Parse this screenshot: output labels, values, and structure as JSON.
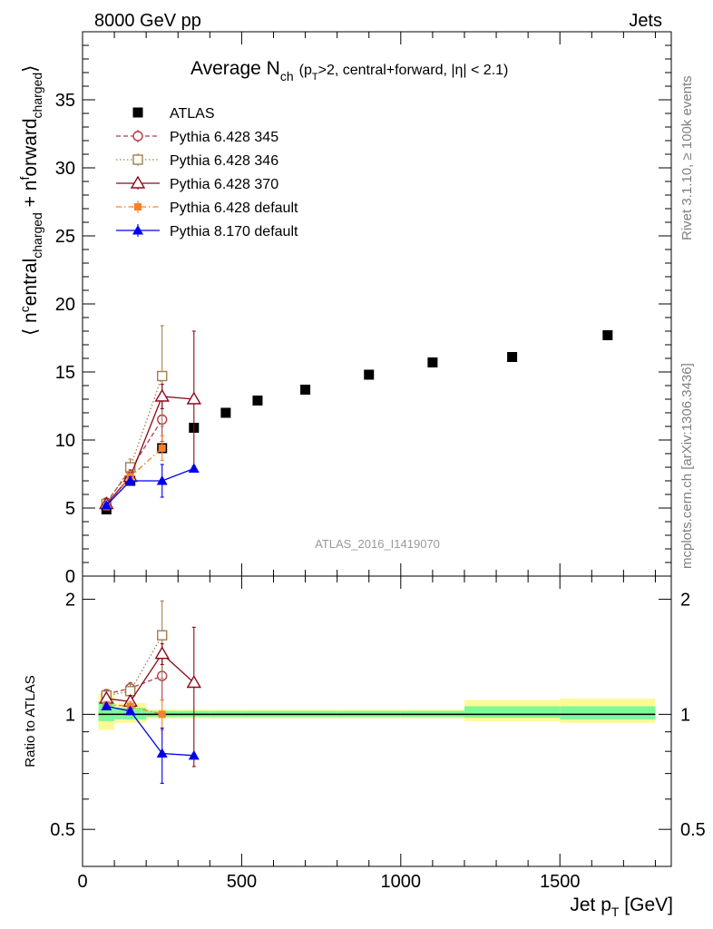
{
  "header": {
    "energy_label": "8000 GeV pp",
    "category_label": "Jets"
  },
  "title": {
    "main": "Average N",
    "main_sub": "ch",
    "detail_pre": "(p",
    "detail_sub": "T",
    "detail_post": ">2, central+forward, |η| < 2.1)"
  },
  "side_labels": {
    "rivet": "Rivet 3.1.10, ≥ 100k events",
    "mcplots": "mcplots.cern.ch [arXiv:1306.3436]"
  },
  "watermark": "ATLAS_2016_I1419070",
  "colors": {
    "atlas": "#000000",
    "py345": "#b03a48",
    "py346": "#a0804a",
    "py370": "#8b0a1e",
    "py6def": "#f5822a",
    "py8def": "#0000ee",
    "band_inner": "#7dfa96",
    "band_outer": "#fbfb96"
  },
  "chart_data": [
    {
      "type": "scatter",
      "panel": "main",
      "title": "Average N_ch (p_T>2, central+forward, |η| < 2.1)",
      "ylabel": "⟨ n^central_charged + n^forward_charged ⟩",
      "ylim": [
        0,
        40
      ],
      "xlim": [
        0,
        1850
      ],
      "yticks": [
        0,
        5,
        10,
        15,
        20,
        25,
        30,
        35
      ],
      "legend_position": "top-left",
      "series": [
        {
          "key": "atlas",
          "name": "ATLAS",
          "marker": "square-filled",
          "line": "none",
          "x": [
            75,
            150,
            250,
            350,
            450,
            550,
            700,
            900,
            1100,
            1350,
            1650
          ],
          "y": [
            4.9,
            7.0,
            9.4,
            10.9,
            12.0,
            12.9,
            13.7,
            14.8,
            15.7,
            16.1,
            17.7
          ]
        },
        {
          "key": "py345",
          "name": "Pythia 6.428 345",
          "marker": "circle-open",
          "line": "dashed",
          "x": [
            75,
            150,
            250
          ],
          "y": [
            5.4,
            7.8,
            11.5
          ],
          "yerr": [
            0.3,
            0.4,
            1.6
          ]
        },
        {
          "key": "py346",
          "name": "Pythia 6.428 346",
          "marker": "square-open",
          "line": "dotted",
          "x": [
            75,
            150,
            250
          ],
          "y": [
            5.3,
            8.0,
            14.7
          ],
          "yerr": [
            0.3,
            0.6,
            3.7
          ]
        },
        {
          "key": "py370",
          "name": "Pythia 6.428 370",
          "marker": "triangle-open",
          "line": "solid",
          "x": [
            75,
            150,
            250,
            350
          ],
          "y": [
            5.3,
            7.3,
            13.2,
            13.0
          ],
          "yerr": [
            0.3,
            0.5,
            0.9,
            5.0
          ]
        },
        {
          "key": "py6def",
          "name": "Pythia 6.428 default",
          "marker": "square-small-filled",
          "line": "dashdot",
          "x": [
            75,
            150,
            250
          ],
          "y": [
            5.1,
            7.3,
            9.4
          ],
          "yerr": [
            0.2,
            0.4,
            0.9
          ]
        },
        {
          "key": "py8def",
          "name": "Pythia 8.170 default",
          "marker": "triangle-filled",
          "line": "solid",
          "x": [
            75,
            150,
            250,
            350
          ],
          "y": [
            5.2,
            7.0,
            7.0,
            7.9
          ],
          "yerr": [
            0.2,
            0.3,
            1.2,
            0.2
          ]
        }
      ]
    },
    {
      "type": "scatter",
      "panel": "ratio",
      "ylabel": "Ratio to ATLAS",
      "xlabel": "Jet p_T [GeV]",
      "ylim": [
        0.4,
        2.3
      ],
      "xlim": [
        0,
        1850
      ],
      "yscale": "log",
      "yticks": [
        0.5,
        1,
        2
      ],
      "xticks": [
        0,
        500,
        1000,
        1500
      ],
      "reference": 1.0,
      "bands": [
        {
          "x": [
            50,
            100
          ],
          "inner": [
            0.96,
            1.08
          ],
          "outer": [
            0.91,
            1.13
          ]
        },
        {
          "x": [
            100,
            200
          ],
          "inner": [
            0.97,
            1.04
          ],
          "outer": [
            0.95,
            1.07
          ]
        },
        {
          "x": [
            200,
            300
          ],
          "inner": [
            0.985,
            1.02
          ],
          "outer": [
            0.975,
            1.03
          ]
        },
        {
          "x": [
            300,
            400
          ],
          "inner": [
            0.985,
            1.02
          ],
          "outer": [
            0.975,
            1.03
          ]
        },
        {
          "x": [
            400,
            500
          ],
          "inner": [
            0.985,
            1.02
          ],
          "outer": [
            0.975,
            1.03
          ]
        },
        {
          "x": [
            500,
            600
          ],
          "inner": [
            0.985,
            1.02
          ],
          "outer": [
            0.975,
            1.03
          ]
        },
        {
          "x": [
            600,
            800
          ],
          "inner": [
            0.985,
            1.02
          ],
          "outer": [
            0.975,
            1.03
          ]
        },
        {
          "x": [
            800,
            1000
          ],
          "inner": [
            0.985,
            1.02
          ],
          "outer": [
            0.975,
            1.03
          ]
        },
        {
          "x": [
            1000,
            1200
          ],
          "inner": [
            0.985,
            1.02
          ],
          "outer": [
            0.975,
            1.03
          ]
        },
        {
          "x": [
            1200,
            1500
          ],
          "inner": [
            0.98,
            1.05
          ],
          "outer": [
            0.96,
            1.09
          ]
        },
        {
          "x": [
            1500,
            1800
          ],
          "inner": [
            0.97,
            1.05
          ],
          "outer": [
            0.95,
            1.1
          ]
        }
      ],
      "series": [
        {
          "key": "py345",
          "name": "Pythia 6.428 345",
          "marker": "circle-open",
          "line": "dashed",
          "x": [
            75,
            150,
            250
          ],
          "y": [
            1.13,
            1.17,
            1.26
          ],
          "yerr": [
            0.03,
            0.04,
            0.17
          ]
        },
        {
          "key": "py346",
          "name": "Pythia 6.428 346",
          "marker": "square-open",
          "line": "dotted",
          "x": [
            75,
            150,
            250
          ],
          "y": [
            1.12,
            1.15,
            1.61
          ],
          "yerr": [
            0.03,
            0.05,
            0.37
          ]
        },
        {
          "key": "py370",
          "name": "Pythia 6.428 370",
          "marker": "triangle-open",
          "line": "solid",
          "x": [
            75,
            150,
            250,
            350
          ],
          "y": [
            1.1,
            1.08,
            1.44,
            1.21
          ],
          "yerr": [
            0.03,
            0.04,
            0.09,
            0.48
          ]
        },
        {
          "key": "py6def",
          "name": "Pythia 6.428 default",
          "marker": "square-small-filled",
          "line": "dashdot",
          "x": [
            75,
            150,
            250
          ],
          "y": [
            1.06,
            1.05,
            1.0
          ],
          "yerr": [
            0.02,
            0.03,
            0.09
          ]
        },
        {
          "key": "py8def",
          "name": "Pythia 8.170 default",
          "marker": "triangle-filled",
          "line": "solid",
          "x": [
            75,
            150,
            250,
            350
          ],
          "y": [
            1.05,
            1.02,
            0.79,
            0.78
          ],
          "yerr": [
            0.02,
            0.02,
            0.13,
            0.01
          ]
        }
      ]
    }
  ]
}
